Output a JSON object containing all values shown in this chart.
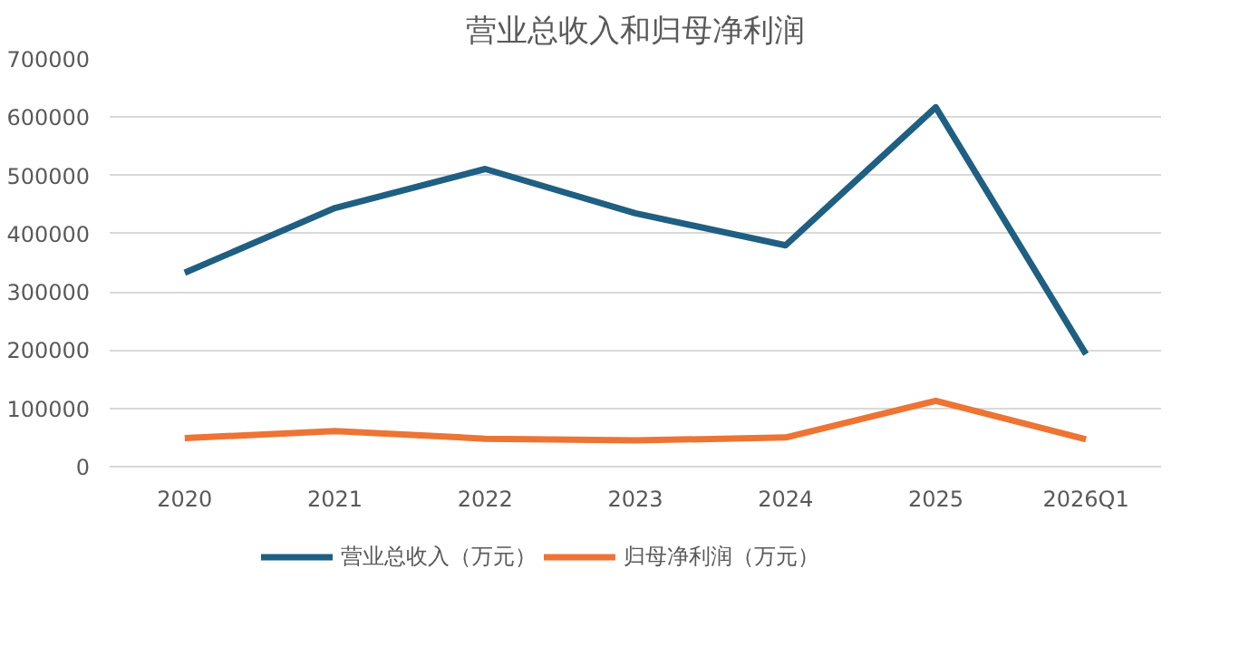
{
  "chart_data": {
    "type": "line",
    "title": "营业总收入和归母净利润",
    "categories": [
      "2020",
      "2021",
      "2022",
      "2023",
      "2024",
      "2025",
      "2026Q1"
    ],
    "series": [
      {
        "name": "营业总收入（万元）",
        "color": "#1f5f82",
        "values": [
          333000,
          444000,
          511000,
          435000,
          380000,
          617000,
          193000
        ]
      },
      {
        "name": "归母净利润（万元）",
        "color": "#ed7434",
        "values": [
          49000,
          61000,
          48000,
          45000,
          50000,
          113000,
          47000
        ]
      }
    ],
    "ylim": [
      0,
      700000
    ],
    "yticks": [
      0,
      100000,
      200000,
      300000,
      400000,
      500000,
      600000,
      700000
    ],
    "grid": "y",
    "legend": "bottom",
    "marker": "none",
    "line_style": "solid"
  }
}
